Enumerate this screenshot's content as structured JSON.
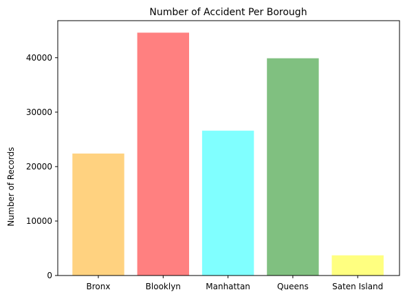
{
  "chart_data": {
    "type": "bar",
    "title": "Number of Accident Per Borough",
    "xlabel": "",
    "ylabel": "Number of Records",
    "categories": [
      "Bronx",
      "Blooklyn",
      "Manhattan",
      "Queens",
      "Saten Island"
    ],
    "values": [
      22400,
      44600,
      26600,
      39900,
      3700
    ],
    "colors": [
      "#ffd280",
      "#ff8080",
      "#80ffff",
      "#80c080",
      "#ffff80"
    ],
    "ylim": [
      0,
      46800
    ],
    "yticks": [
      0,
      10000,
      20000,
      30000,
      40000
    ],
    "ytick_labels": [
      "0",
      "10000",
      "20000",
      "30000",
      "40000"
    ],
    "grid": false,
    "legend": "none"
  }
}
